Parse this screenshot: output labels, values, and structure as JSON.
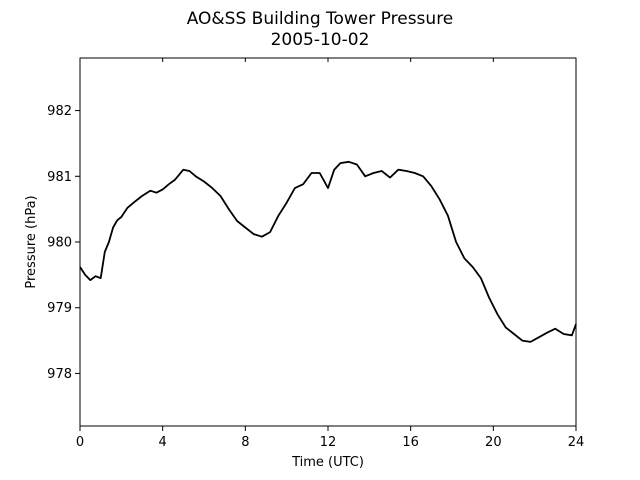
{
  "chart_data": {
    "type": "line",
    "title": "AO&SS Building Tower Pressure",
    "subtitle": "2005-10-02",
    "xlabel": "Time (UTC)",
    "ylabel": "Pressure (hPa)",
    "xlim": [
      0,
      24
    ],
    "ylim": [
      977.2,
      982.8
    ],
    "xticks": [
      0,
      4,
      8,
      12,
      16,
      20,
      24
    ],
    "yticks": [
      978,
      979,
      980,
      981,
      982
    ],
    "grid": false,
    "legend": "none",
    "line_color": "#000000",
    "series": [
      {
        "x": [
          0,
          0.25,
          0.5,
          0.75,
          1.0,
          1.2,
          1.4,
          1.6,
          1.8,
          2.0,
          2.3,
          2.6,
          3.0,
          3.4,
          3.7,
          4.0,
          4.3,
          4.6,
          5.0,
          5.3,
          5.6,
          6.0,
          6.4,
          6.8,
          7.2,
          7.6,
          8.0,
          8.4,
          8.8,
          9.2,
          9.6,
          10.0,
          10.4,
          10.8,
          11.2,
          11.6,
          12.0,
          12.3,
          12.6,
          13.0,
          13.4,
          13.8,
          14.2,
          14.6,
          15.0,
          15.4,
          15.8,
          16.2,
          16.6,
          17.0,
          17.4,
          17.8,
          18.2,
          18.6,
          19.0,
          19.4,
          19.8,
          20.2,
          20.6,
          21.0,
          21.4,
          21.8,
          22.2,
          22.6,
          23.0,
          23.4,
          23.8,
          24.0
        ],
        "y": [
          979.62,
          979.5,
          979.42,
          979.48,
          979.45,
          979.85,
          980.0,
          980.22,
          980.33,
          980.38,
          980.52,
          980.6,
          980.7,
          980.78,
          980.75,
          980.8,
          980.88,
          980.95,
          981.1,
          981.08,
          981.0,
          980.92,
          980.82,
          980.7,
          980.5,
          980.32,
          980.22,
          980.12,
          980.08,
          980.15,
          980.4,
          980.6,
          980.82,
          980.88,
          981.05,
          981.05,
          980.82,
          981.1,
          981.2,
          981.22,
          981.18,
          981.0,
          981.05,
          981.08,
          980.98,
          981.1,
          981.08,
          981.05,
          981.0,
          980.85,
          980.65,
          980.4,
          980.0,
          979.75,
          979.62,
          979.45,
          979.15,
          978.9,
          978.7,
          978.6,
          978.5,
          978.48,
          978.55,
          978.62,
          978.68,
          978.6,
          978.58,
          978.75
        ]
      }
    ]
  }
}
